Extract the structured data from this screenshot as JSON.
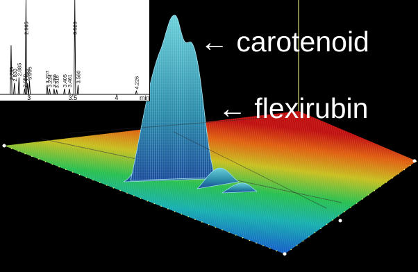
{
  "annotations": {
    "carotenoid": "← carotenoid",
    "flexirubin": "← flexirubin"
  },
  "chart_data": [
    {
      "type": "line",
      "title": "",
      "xlabel": "min",
      "ylabel": "",
      "x_ticks": [
        "3",
        "3.5",
        "4"
      ],
      "xlim": [
        2.7,
        4.35
      ],
      "peaks": [
        {
          "label": "2.795",
          "x": 2.795,
          "height": 0.52
        },
        {
          "label": "2.833",
          "x": 2.833,
          "height": 0.12
        },
        {
          "label": "2.885",
          "x": 2.885,
          "height": 0.18
        },
        {
          "label": "2.950",
          "x": 2.95,
          "height": 0.06
        },
        {
          "label": "2.965",
          "x": 2.965,
          "height": 1.0
        },
        {
          "label": "2.983",
          "x": 2.983,
          "height": 0.12
        },
        {
          "label": "3.005",
          "x": 3.005,
          "height": 0.14
        },
        {
          "label": "3.207",
          "x": 3.207,
          "height": 0.1
        },
        {
          "label": "3.234",
          "x": 3.234,
          "height": 0.06
        },
        {
          "label": "3.286",
          "x": 3.286,
          "height": 0.06
        },
        {
          "label": "3.316",
          "x": 3.316,
          "height": 0.05
        },
        {
          "label": "3.405",
          "x": 3.405,
          "height": 0.06
        },
        {
          "label": "3.461",
          "x": 3.461,
          "height": 0.06
        },
        {
          "label": "3.523",
          "x": 3.523,
          "height": 1.0
        },
        {
          "label": "3.560",
          "x": 3.56,
          "height": 0.1
        },
        {
          "label": "4.226",
          "x": 4.226,
          "height": 0.04
        }
      ]
    },
    {
      "type": "heatmap",
      "title": "",
      "peaks": [
        {
          "name": "carotenoid",
          "relative_height": 1.0
        },
        {
          "name": "flexirubin",
          "relative_height": 0.75
        },
        {
          "name": "",
          "relative_height": 0.12
        },
        {
          "name": "",
          "relative_height": 0.06
        }
      ]
    }
  ],
  "colors": {
    "background": "#000000",
    "mesh": "#9fdff0",
    "axis_ticks": "#e8e84a",
    "surface_low": "#1030b0",
    "surface_mid": "#20c060",
    "surface_high": "#c81818"
  }
}
